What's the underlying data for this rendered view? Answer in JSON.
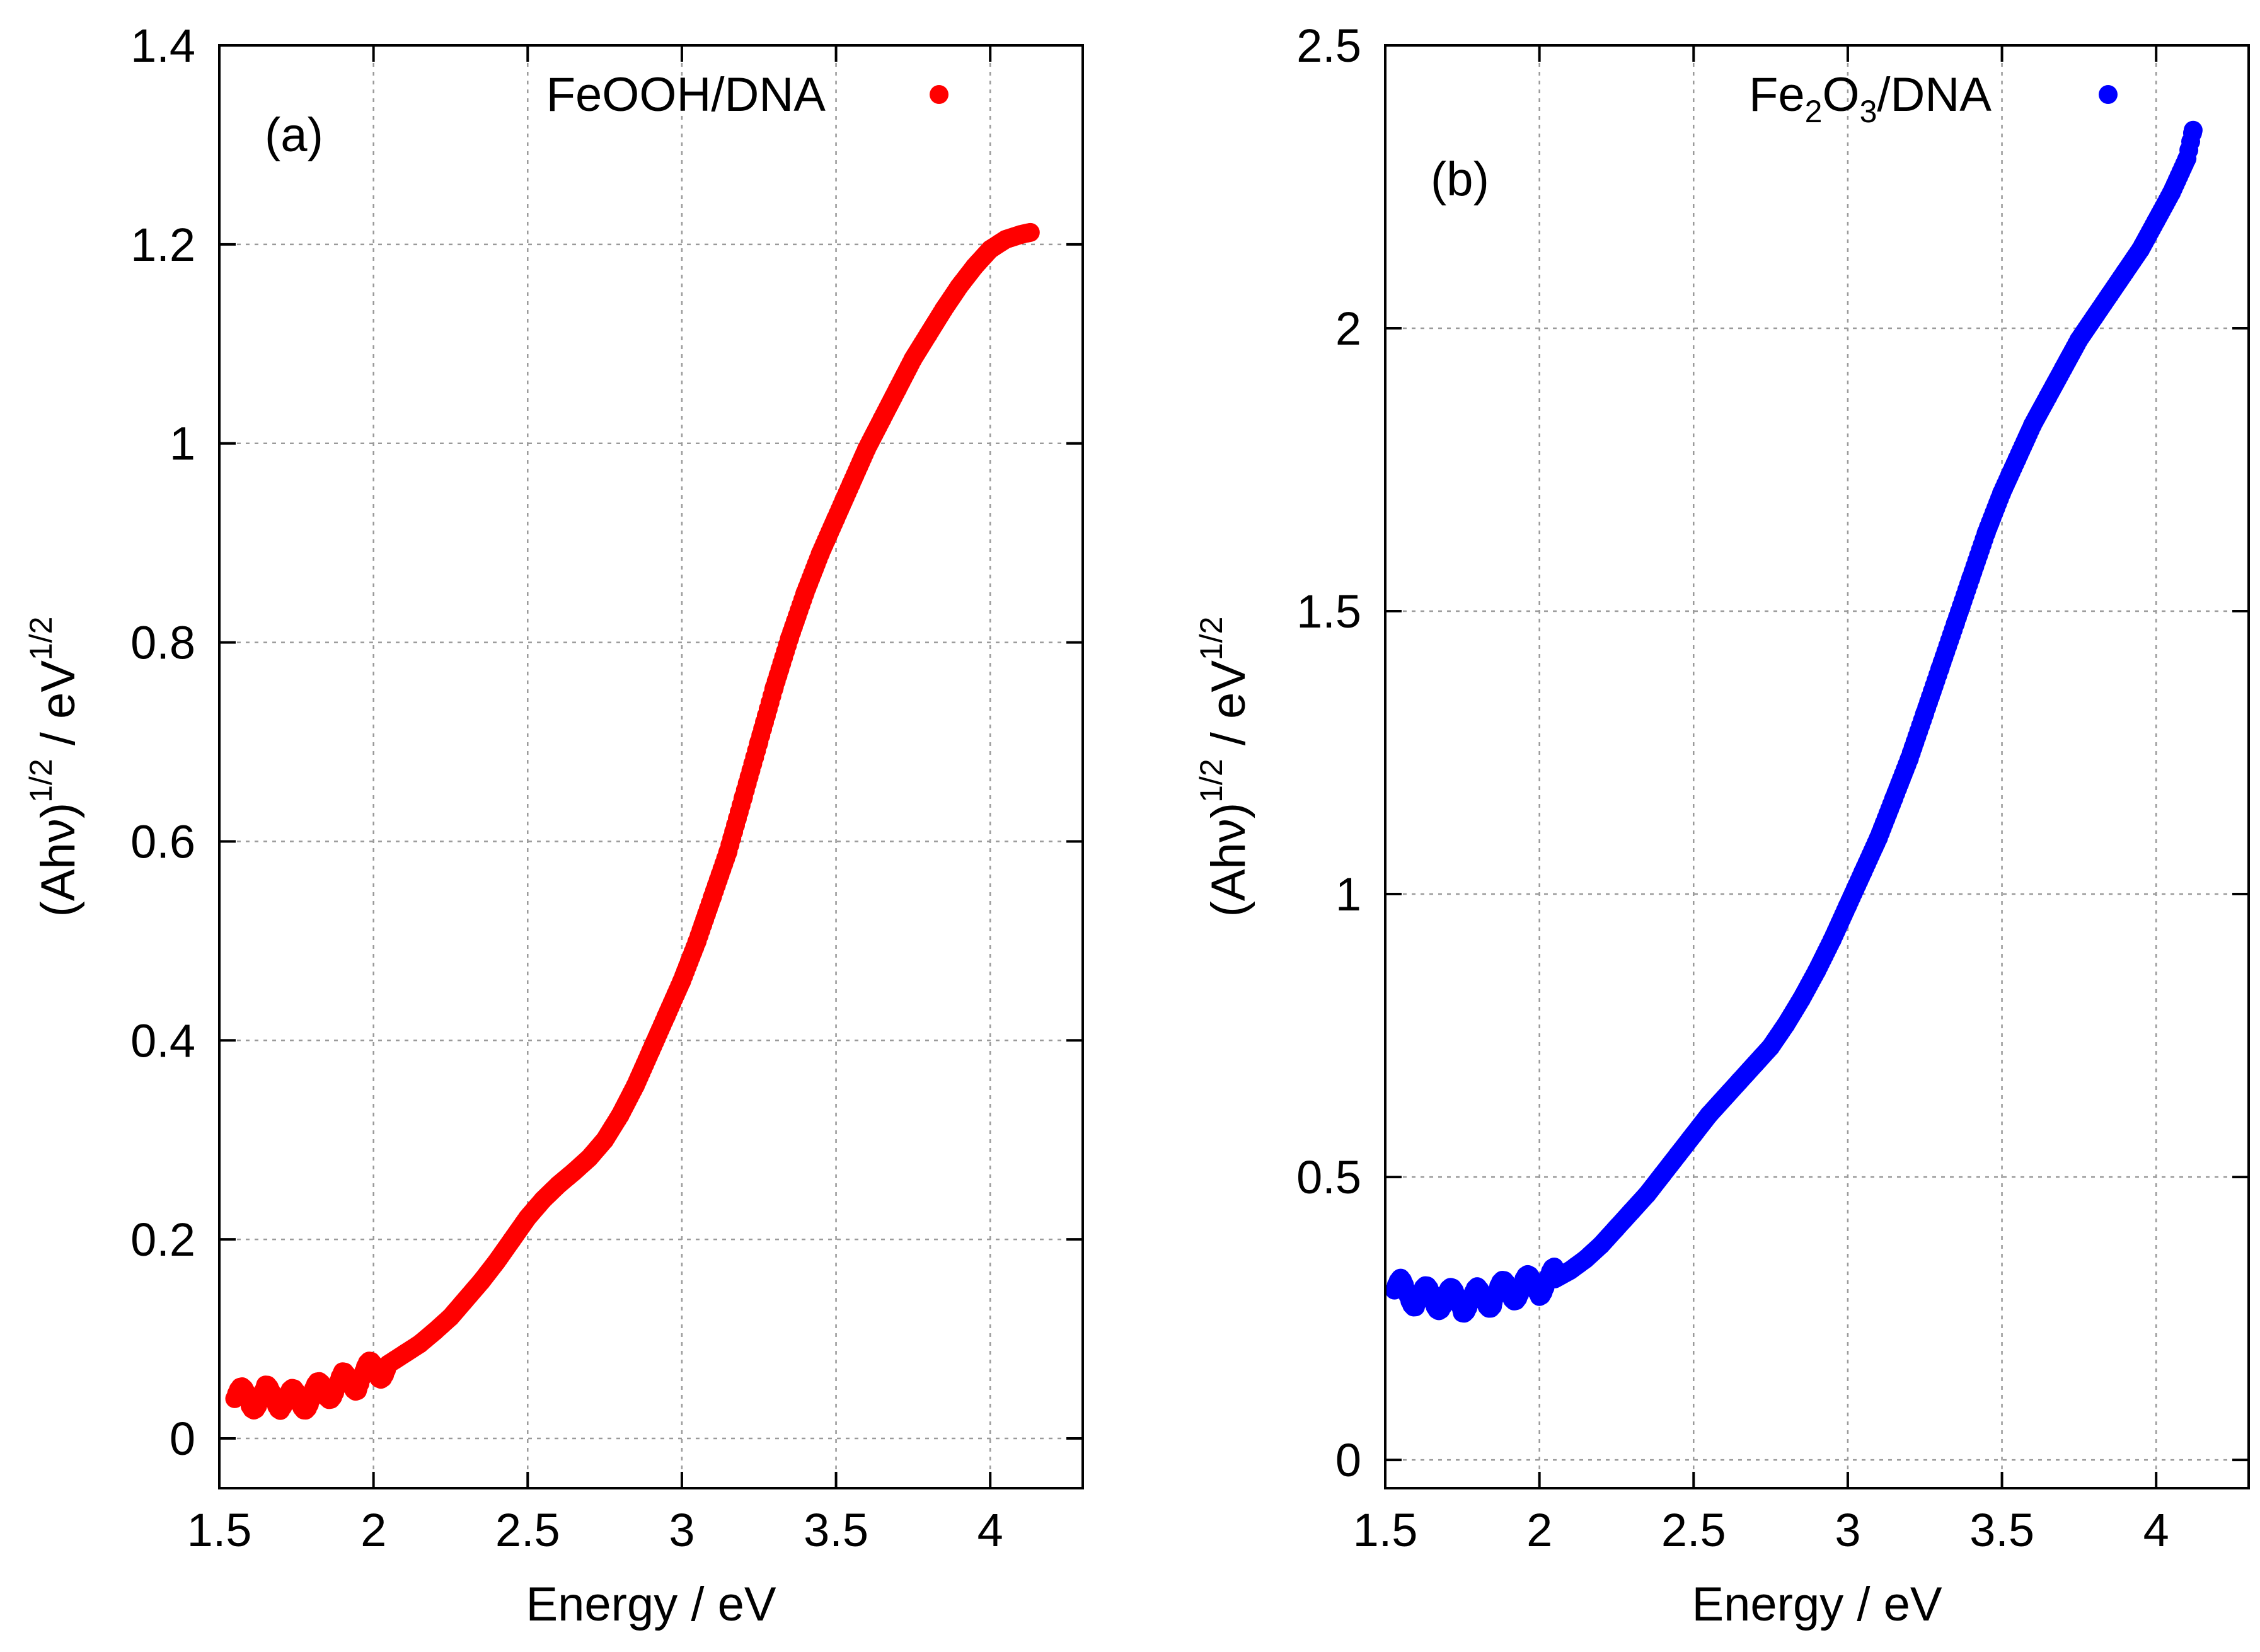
{
  "chart_data": [
    {
      "type": "scatter",
      "panel_label": "(a)",
      "xlabel": "Energy / eV",
      "ylabel_parts": {
        "base": "(Ahν)",
        "sup1": "1/2",
        "unit": " / eV",
        "sup2": "1/2"
      },
      "xlim": [
        1.5,
        4.3
      ],
      "ylim": [
        -0.05,
        1.4
      ],
      "xticks": [
        1.5,
        2,
        2.5,
        3,
        3.5,
        4
      ],
      "xtick_labels": [
        "1.5",
        "2",
        "2.5",
        "3",
        "3.5",
        "4"
      ],
      "yticks": [
        0,
        0.2,
        0.4,
        0.6,
        0.8,
        1,
        1.2,
        1.4
      ],
      "ytick_labels": [
        "0",
        "0.2",
        "0.4",
        "0.6",
        "0.8",
        "1",
        "1.2",
        "1.4"
      ],
      "grid": true,
      "legend_position": "top-right",
      "series": [
        {
          "name": "FeOOH/DNA",
          "legend_parts": {
            "text": "FeOOH/DNA"
          },
          "color": "#ff0000",
          "x": [
            1.55,
            1.6,
            1.65,
            1.7,
            1.75,
            1.8,
            1.85,
            1.9,
            1.95,
            2.0,
            2.05,
            2.1,
            2.15,
            2.2,
            2.25,
            2.3,
            2.35,
            2.4,
            2.45,
            2.5,
            2.55,
            2.6,
            2.65,
            2.7,
            2.75,
            2.8,
            2.85,
            2.9,
            2.95,
            3.0,
            3.05,
            3.1,
            3.15,
            3.2,
            3.25,
            3.3,
            3.35,
            3.4,
            3.45,
            3.5,
            3.55,
            3.6,
            3.65,
            3.7,
            3.75,
            3.8,
            3.85,
            3.9,
            3.95,
            4.0,
            4.05,
            4.1,
            4.13
          ],
          "y": [
            0.04,
            0.04,
            0.042,
            0.04,
            0.038,
            0.042,
            0.05,
            0.055,
            0.06,
            0.068,
            0.075,
            0.085,
            0.095,
            0.108,
            0.122,
            0.14,
            0.158,
            0.178,
            0.2,
            0.222,
            0.24,
            0.255,
            0.268,
            0.282,
            0.3,
            0.325,
            0.355,
            0.39,
            0.425,
            0.46,
            0.5,
            0.545,
            0.59,
            0.645,
            0.7,
            0.755,
            0.805,
            0.85,
            0.89,
            0.925,
            0.96,
            0.995,
            1.025,
            1.055,
            1.085,
            1.11,
            1.135,
            1.158,
            1.178,
            1.195,
            1.205,
            1.21,
            1.212
          ]
        }
      ]
    },
    {
      "type": "scatter",
      "panel_label": "(b)",
      "xlabel": "Energy / eV",
      "ylabel_parts": {
        "base": "(Ahν)",
        "sup1": "1/2",
        "unit": " / eV",
        "sup2": "1/2"
      },
      "xlim": [
        1.5,
        4.3
      ],
      "ylim": [
        -0.05,
        2.5
      ],
      "xticks": [
        1.5,
        2,
        2.5,
        3,
        3.5,
        4
      ],
      "xtick_labels": [
        "1.5",
        "2",
        "2.5",
        "3",
        "3.5",
        "4"
      ],
      "yticks": [
        0,
        0.5,
        1,
        1.5,
        2,
        2.5
      ],
      "ytick_labels": [
        "0",
        "0.5",
        "1",
        "1.5",
        "2",
        "2.5"
      ],
      "grid": true,
      "legend_position": "top-right",
      "series": [
        {
          "name": "Fe2O3/DNA",
          "legend_parts": {
            "pre": "Fe",
            "sub1": "2",
            "mid": "O",
            "sub2": "3",
            "post": "/DNA"
          },
          "color": "#0000ff",
          "x": [
            1.53,
            1.55,
            1.6,
            1.65,
            1.7,
            1.75,
            1.8,
            1.85,
            1.9,
            1.95,
            2.0,
            2.05,
            2.1,
            2.15,
            2.2,
            2.25,
            2.3,
            2.35,
            2.4,
            2.45,
            2.5,
            2.55,
            2.6,
            2.65,
            2.7,
            2.75,
            2.8,
            2.85,
            2.9,
            2.95,
            3.0,
            3.05,
            3.1,
            3.15,
            3.2,
            3.25,
            3.3,
            3.35,
            3.4,
            3.45,
            3.5,
            3.55,
            3.6,
            3.65,
            3.7,
            3.75,
            3.8,
            3.85,
            3.9,
            3.95,
            4.0,
            4.05,
            4.1,
            4.12
          ],
          "y": [
            0.3,
            0.3,
            0.29,
            0.285,
            0.285,
            0.28,
            0.285,
            0.29,
            0.3,
            0.305,
            0.31,
            0.32,
            0.335,
            0.355,
            0.38,
            0.41,
            0.44,
            0.47,
            0.505,
            0.54,
            0.575,
            0.61,
            0.64,
            0.67,
            0.7,
            0.73,
            0.77,
            0.815,
            0.865,
            0.92,
            0.98,
            1.04,
            1.1,
            1.17,
            1.24,
            1.32,
            1.4,
            1.48,
            1.56,
            1.64,
            1.71,
            1.77,
            1.83,
            1.88,
            1.93,
            1.98,
            2.02,
            2.06,
            2.1,
            2.14,
            2.19,
            2.24,
            2.3,
            2.35
          ]
        }
      ]
    }
  ]
}
